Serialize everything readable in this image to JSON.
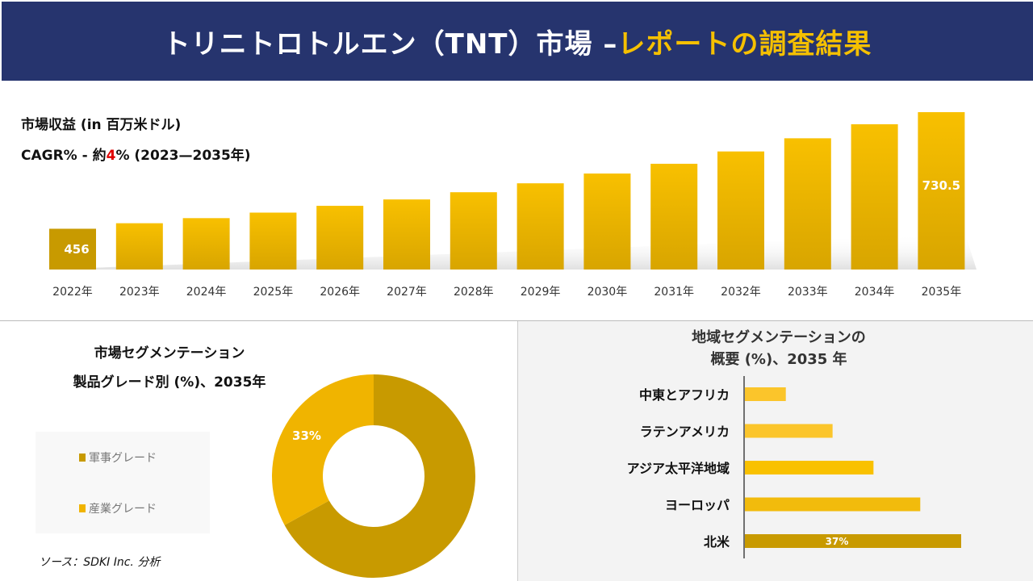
{
  "header": {
    "title_main": "トリニトロトルエン（TNT）市場 –",
    "title_accent": "レポートの調査結果"
  },
  "revenue_label": "市場収益 (in 百万米ドル)",
  "cagr": {
    "prefix": "CAGR% - 約",
    "value": "4",
    "suffix": "% (2023—2035年)"
  },
  "colors": {
    "header_bg": "#26346e",
    "accent": "#f5c000",
    "military": "#c89a00",
    "industrial": "#f0b400",
    "cagr_value": "#e00000"
  },
  "chart_data": [
    {
      "type": "bar",
      "categories": [
        "2022年",
        "2023年",
        "2024年",
        "2025年",
        "2026年",
        "2027年",
        "2028年",
        "2029年",
        "2030年",
        "2031年",
        "2032年",
        "2033年",
        "2034年",
        "2035年"
      ],
      "values": [
        456,
        469,
        481,
        494,
        510,
        525,
        542,
        563,
        586,
        609,
        638,
        669,
        702,
        730.5
      ],
      "data_labels": {
        "0": "456",
        "13": "730.5"
      },
      "ylim": [
        360,
        740
      ],
      "grid": false
    },
    {
      "type": "pie",
      "donut": true,
      "title_lines": [
        "市場セグメンテーション",
        "製品グレード別 (%)、2035年"
      ],
      "labels": [
        "軍事グレード",
        "産業グレード"
      ],
      "values": [
        67,
        33
      ],
      "data_labels": {
        "1": "33%"
      },
      "legend": "left"
    },
    {
      "type": "bar",
      "orientation": "horizontal",
      "title_lines": [
        "地域セグメンテーションの",
        "概要 (%)、2035 年"
      ],
      "categories": [
        "中東とアフリカ",
        "ラテンアメリカ",
        "アジア太平洋地域",
        "ヨーロッパ",
        "北米"
      ],
      "values": [
        7,
        15,
        22,
        30,
        37
      ],
      "data_labels": {
        "4": "37%"
      },
      "xlim": [
        0,
        37
      ]
    }
  ],
  "source": "ソース：SDKI Inc. 分析"
}
